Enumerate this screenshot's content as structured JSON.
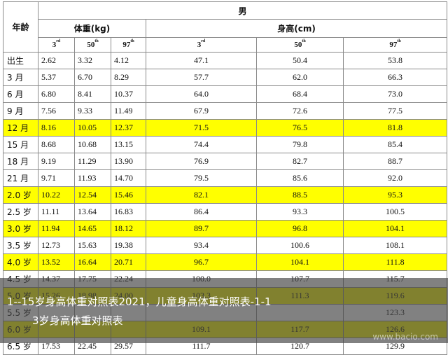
{
  "header": {
    "age_label": "年龄",
    "gender": "男",
    "weight_label": "体重(kg)",
    "height_label": "身高(cm)",
    "percentiles": [
      {
        "num": "3",
        "sup": "rd"
      },
      {
        "num": "50",
        "sup": "th"
      },
      {
        "num": "97",
        "sup": "th"
      }
    ]
  },
  "rows": [
    {
      "age": "出生",
      "w": [
        "2.62",
        "3.32",
        "4.12"
      ],
      "h": [
        "47.1",
        "50.4",
        "53.8"
      ],
      "highlight": false
    },
    {
      "age": "3 月",
      "w": [
        "5.37",
        "6.70",
        "8.29"
      ],
      "h": [
        "57.7",
        "62.0",
        "66.3"
      ],
      "highlight": false
    },
    {
      "age": "6 月",
      "w": [
        "6.80",
        "8.41",
        "10.37"
      ],
      "h": [
        "64.0",
        "68.4",
        "73.0"
      ],
      "highlight": false
    },
    {
      "age": "9 月",
      "w": [
        "7.56",
        "9.33",
        "11.49"
      ],
      "h": [
        "67.9",
        "72.6",
        "77.5"
      ],
      "highlight": false
    },
    {
      "age": "12 月",
      "w": [
        "8.16",
        "10.05",
        "12.37"
      ],
      "h": [
        "71.5",
        "76.5",
        "81.8"
      ],
      "highlight": true
    },
    {
      "age": "15 月",
      "w": [
        "8.68",
        "10.68",
        "13.15"
      ],
      "h": [
        "74.4",
        "79.8",
        "85.4"
      ],
      "highlight": false
    },
    {
      "age": "18 月",
      "w": [
        "9.19",
        "11.29",
        "13.90"
      ],
      "h": [
        "76.9",
        "82.7",
        "88.7"
      ],
      "highlight": false
    },
    {
      "age": "21 月",
      "w": [
        "9.71",
        "11.93",
        "14.70"
      ],
      "h": [
        "79.5",
        "85.6",
        "92.0"
      ],
      "highlight": false
    },
    {
      "age": "2.0 岁",
      "w": [
        "10.22",
        "12.54",
        "15.46"
      ],
      "h": [
        "82.1",
        "88.5",
        "95.3"
      ],
      "highlight": true
    },
    {
      "age": "2.5 岁",
      "w": [
        "11.11",
        "13.64",
        "16.83"
      ],
      "h": [
        "86.4",
        "93.3",
        "100.5"
      ],
      "highlight": false
    },
    {
      "age": "3.0 岁",
      "w": [
        "11.94",
        "14.65",
        "18.12"
      ],
      "h": [
        "89.7",
        "96.8",
        "104.1"
      ],
      "highlight": true
    },
    {
      "age": "3.5 岁",
      "w": [
        "12.73",
        "15.63",
        "19.38"
      ],
      "h": [
        "93.4",
        "100.6",
        "108.1"
      ],
      "highlight": false
    },
    {
      "age": "4.0 岁",
      "w": [
        "13.52",
        "16.64",
        "20.71"
      ],
      "h": [
        "96.7",
        "104.1",
        "111.8"
      ],
      "highlight": true
    },
    {
      "age": "4.5 岁",
      "w": [
        "14.37",
        "17.75",
        "22.24"
      ],
      "h": [
        "100.0",
        "107.7",
        "115.7"
      ],
      "highlight": false
    },
    {
      "age": "5.0 岁",
      "w": [
        "15.26",
        "18.98",
        "24.00"
      ],
      "h": [
        "103.3",
        "111.3",
        "119.6"
      ],
      "highlight": true
    },
    {
      "age": "5.5 岁",
      "w": [
        "",
        "",
        ""
      ],
      "h": [
        "",
        "",
        "123.3"
      ],
      "highlight": false
    },
    {
      "age": "6.0 岁",
      "w": [
        "",
        "",
        ""
      ],
      "h": [
        "109.1",
        "117.7",
        "126.6"
      ],
      "highlight": true
    },
    {
      "age": "6.5 岁",
      "w": [
        "17.53",
        "22.45",
        "29.57"
      ],
      "h": [
        "111.7",
        "120.7",
        "129.9"
      ],
      "highlight": false
    }
  ],
  "caption": {
    "line1": "1--15岁身高体重对照表2021，儿童身高体重对照表-1-1",
    "line2": "3岁身高体重对照表"
  }
}
